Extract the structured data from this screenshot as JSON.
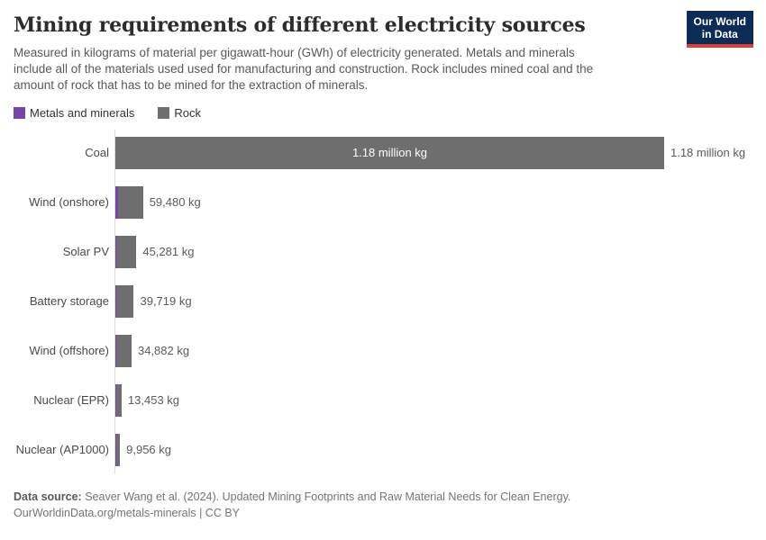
{
  "header": {
    "title": "Mining requirements of different electricity sources",
    "logo": {
      "line1": "Our World",
      "line2": "in Data"
    }
  },
  "subtitle": {
    "lines": [
      "Measured in kilograms of material per gigawatt-hour (GWh) of electricity generated. Metals and minerals",
      "include all of the materials used used for manufacturing and construction. Rock includes mined coal and the",
      "amount of rock that has to be mined for the extraction of minerals."
    ]
  },
  "legend": {
    "items": [
      {
        "label": "Metals and minerals",
        "color": "#7647a2"
      },
      {
        "label": "Rock",
        "color": "#6e6e6e"
      }
    ]
  },
  "colors": {
    "metals": "#7647a2",
    "rock": "#6e6e6e",
    "axis": "#dcdcdc",
    "logo_navy": "#0d2c55",
    "logo_red": "#d8403a"
  },
  "chart_data": {
    "type": "bar",
    "orientation": "horizontal",
    "unit": "kg of material per GWh",
    "categories": [
      "Coal",
      "Wind (onshore)",
      "Solar PV",
      "Battery storage",
      "Wind (offshore)",
      "Nuclear (EPR)",
      "Nuclear (AP1000)"
    ],
    "totals": [
      1180000,
      59480,
      45281,
      39719,
      34882,
      13453,
      9956
    ],
    "total_labels": [
      "1.18 million kg",
      "59,480 kg",
      "45,281 kg",
      "39,719 kg",
      "34,882 kg",
      "13,453 kg",
      "9,956 kg"
    ],
    "series": [
      {
        "name": "Metals and minerals",
        "estimated_from_pixels": true,
        "values": [
          900,
          5800,
          2900,
          2900,
          2900,
          1900,
          1900
        ]
      },
      {
        "name": "Rock",
        "estimated_from_pixels": true,
        "values": [
          1179100,
          53680,
          42381,
          36819,
          31982,
          11553,
          8056
        ]
      }
    ],
    "inside_bar_label": {
      "row_index": 0,
      "text": "1.18 million kg"
    },
    "xlim": [
      0,
      1180000
    ],
    "grid": false,
    "legend_position": "top-left"
  },
  "footer": {
    "source_bold": "Data source:",
    "source_rest": " Seaver Wang et al. (2024). Updated Mining Footprints and Raw Material Needs for Clean Energy.",
    "license_line": "OurWorldinData.org/metals-minerals | CC BY"
  }
}
